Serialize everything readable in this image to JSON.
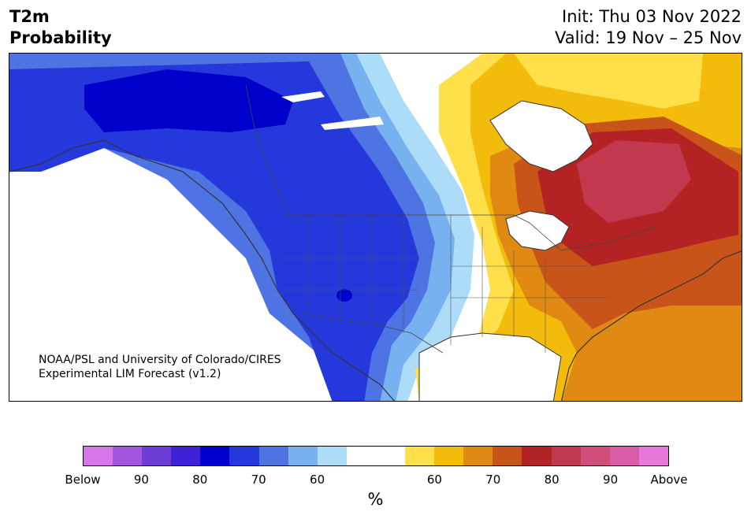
{
  "header": {
    "variable_line1": "T2m",
    "variable_line2": "Probability",
    "init": "Init: Thu 03 Nov 2022",
    "valid": "Valid: 19 Nov – 25 Nov"
  },
  "credit": {
    "line1": "NOAA/PSL and University of Colorado/CIRES",
    "line2": "Experimental LIM Forecast (v1.2)"
  },
  "colorbar": {
    "colors": [
      "#d577e8",
      "#a455e0",
      "#6e3bd6",
      "#3f22d3",
      "#0000cd",
      "#2438db",
      "#4e73e2",
      "#78b1f0",
      "#acdcf8",
      "#ffffff",
      "#ffffff",
      "#ffe04a",
      "#f3bc0d",
      "#e08a14",
      "#c95419",
      "#b42323",
      "#c1384f",
      "#cf4e7c",
      "#d95ca7",
      "#e777d8"
    ],
    "tick_labels": [
      "Below",
      "90",
      "80",
      "70",
      "60",
      "60",
      "70",
      "80",
      "90",
      "Above"
    ],
    "unit": "%"
  },
  "legend_colors": {
    "strong_below": "#0000cd",
    "below": "#2438db",
    "neutral": "#ffffff",
    "above": "#f3bc0d",
    "strong_above": "#b42323"
  }
}
